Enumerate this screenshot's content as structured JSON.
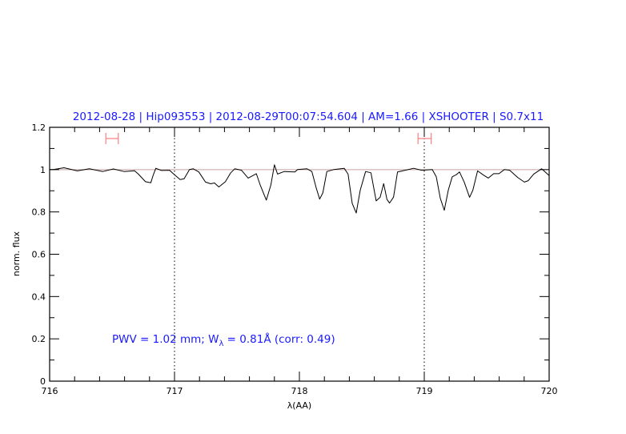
{
  "chart_data": {
    "type": "line",
    "title": "2012-08-28 | Hip093553 | 2012-08-29T00:07:54.604 | AM=1.66 | XSHOOTER | S0.7x11",
    "xlabel": "λ(AA)",
    "ylabel": "norm. flux",
    "xlim": [
      716,
      720
    ],
    "ylim": [
      0,
      1.2
    ],
    "x_ticks": [
      716,
      717,
      718,
      719,
      720
    ],
    "x_tick_labels": [
      "716",
      "717",
      "718",
      "719",
      "720"
    ],
    "y_ticks": [
      0,
      0.2,
      0.4,
      0.6,
      0.8,
      1,
      1.2
    ],
    "y_tick_labels": [
      "0",
      "0.2",
      "0.4",
      "0.6",
      "0.8",
      "1",
      "1.2"
    ],
    "grid": false,
    "reference_line": 1.0,
    "vertical_markers": [
      717,
      719
    ],
    "intervals": [
      [
        716.45,
        716.55
      ],
      [
        718.95,
        719.055
      ]
    ],
    "annotation": {
      "prefix": "PWV = 1.02 mm; W",
      "sub": "λ",
      "suffix": " = 0.81Å (corr: 0.49)"
    },
    "colors": {
      "spectrum": "#000000",
      "reference": "#c8a0a0",
      "interval": "#ff8080",
      "text": "#1a1aff"
    },
    "series": [
      {
        "x": [
          716.0,
          716.03,
          716.115,
          716.222,
          716.318,
          716.425,
          716.51,
          716.596,
          716.68,
          716.71,
          716.767,
          716.81,
          716.83,
          716.85,
          716.895,
          716.96,
          717.0,
          717.045,
          717.077,
          717.12,
          717.15,
          717.194,
          717.248,
          717.29,
          717.32,
          717.355,
          717.408,
          717.45,
          717.483,
          717.536,
          717.59,
          717.655,
          717.686,
          717.735,
          717.772,
          717.8,
          717.825,
          717.878,
          717.964,
          717.985,
          718.06,
          718.1,
          718.134,
          718.162,
          718.188,
          718.22,
          718.274,
          718.359,
          718.39,
          718.423,
          718.455,
          718.487,
          718.53,
          718.573,
          718.615,
          718.647,
          718.675,
          718.701,
          718.722,
          718.754,
          718.786,
          718.872,
          718.915,
          718.979,
          719.064,
          719.096,
          719.128,
          719.16,
          719.192,
          719.224,
          719.256,
          719.282,
          719.32,
          719.363,
          719.389,
          719.427,
          719.47,
          719.513,
          719.556,
          719.598,
          719.641,
          719.684,
          719.748,
          719.801,
          719.833,
          719.876,
          719.94,
          720.0
        ],
        "y": [
          1.0,
          1.0,
          1.009,
          0.994,
          1.004,
          0.991,
          1.003,
          0.991,
          0.995,
          0.979,
          0.943,
          0.938,
          0.975,
          1.006,
          0.996,
          0.997,
          0.976,
          0.953,
          0.957,
          1.0,
          1.004,
          0.989,
          0.941,
          0.933,
          0.937,
          0.918,
          0.943,
          0.985,
          1.004,
          0.997,
          0.96,
          0.981,
          0.928,
          0.856,
          0.928,
          1.023,
          0.979,
          0.991,
          0.989,
          1.0,
          1.004,
          0.991,
          0.915,
          0.861,
          0.89,
          0.991,
          1.0,
          1.006,
          0.979,
          0.84,
          0.795,
          0.903,
          0.991,
          0.985,
          0.852,
          0.87,
          0.934,
          0.859,
          0.842,
          0.87,
          0.989,
          1.0,
          1.006,
          0.997,
          1.0,
          0.966,
          0.865,
          0.808,
          0.903,
          0.966,
          0.976,
          0.989,
          0.941,
          0.869,
          0.903,
          0.994,
          0.976,
          0.96,
          0.981,
          0.981,
          1.0,
          0.997,
          0.963,
          0.941,
          0.948,
          0.979,
          1.004,
          0.972
        ]
      }
    ]
  }
}
